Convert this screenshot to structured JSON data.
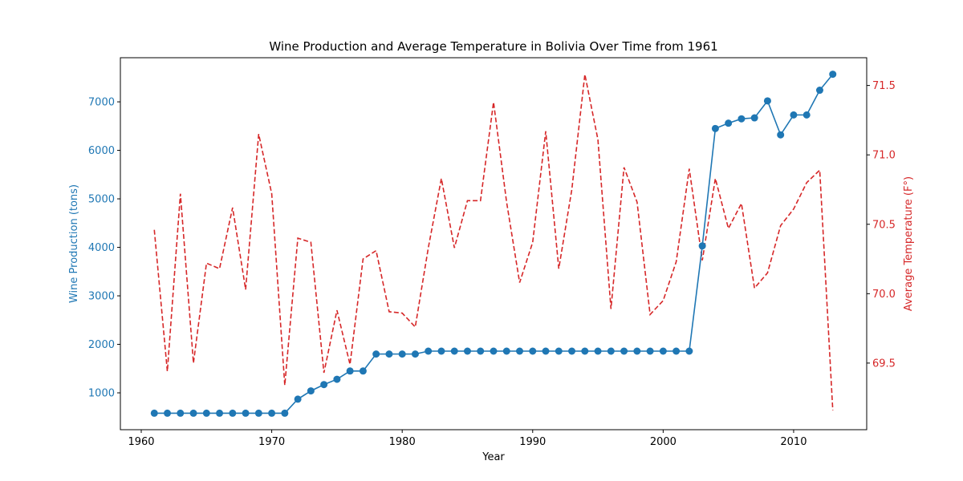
{
  "chart_data": {
    "type": "line",
    "title": "Wine Production and Average Temperature in Bolivia Over Time from 1961",
    "xlabel": "Year",
    "xlim": [
      1958.4,
      2015.6
    ],
    "xticks": [
      1960,
      1970,
      1980,
      1990,
      2000,
      2010
    ],
    "left_axis": {
      "label": "Wine Production (tons)",
      "color": "#1f77b4",
      "ylim": [
        240,
        7910
      ],
      "ticks": [
        1000,
        2000,
        3000,
        4000,
        5000,
        6000,
        7000
      ]
    },
    "right_axis": {
      "label": "Average Temperature (F°)",
      "color": "#d62728",
      "ylim": [
        69.02,
        71.7
      ],
      "ticks": [
        69.5,
        70.0,
        70.5,
        71.0,
        71.5
      ],
      "tick_labels": [
        "69.5",
        "70.0",
        "70.5",
        "71.0",
        "71.5"
      ]
    },
    "x": [
      1961,
      1962,
      1963,
      1964,
      1965,
      1966,
      1967,
      1968,
      1969,
      1970,
      1971,
      1972,
      1973,
      1974,
      1975,
      1976,
      1977,
      1978,
      1979,
      1980,
      1981,
      1982,
      1983,
      1984,
      1985,
      1986,
      1987,
      1988,
      1989,
      1990,
      1991,
      1992,
      1993,
      1994,
      1995,
      1996,
      1997,
      1998,
      1999,
      2000,
      2001,
      2002,
      2003,
      2004,
      2005,
      2006,
      2007,
      2008,
      2009,
      2010,
      2011,
      2012,
      2013
    ],
    "series": [
      {
        "axis": "left",
        "style": "solid-markers",
        "color": "#1f77b4",
        "values": [
          580,
          580,
          580,
          580,
          580,
          580,
          580,
          580,
          580,
          580,
          580,
          870,
          1040,
          1170,
          1280,
          1450,
          1450,
          1800,
          1800,
          1800,
          1800,
          1860,
          1860,
          1860,
          1860,
          1860,
          1860,
          1860,
          1860,
          1860,
          1860,
          1860,
          1860,
          1860,
          1860,
          1860,
          1860,
          1860,
          1860,
          1860,
          1860,
          1860,
          4030,
          6450,
          6560,
          6650,
          6670,
          7020,
          6320,
          6730,
          6730,
          7240,
          7570
        ]
      },
      {
        "axis": "right",
        "style": "dashed",
        "color": "#d62728",
        "values": [
          70.46,
          69.44,
          70.72,
          69.5,
          70.22,
          70.18,
          70.62,
          70.03,
          71.15,
          70.72,
          69.34,
          70.4,
          70.37,
          69.43,
          69.88,
          69.49,
          70.25,
          70.31,
          69.87,
          69.86,
          69.76,
          70.33,
          70.83,
          70.33,
          70.67,
          70.67,
          71.38,
          70.66,
          70.08,
          70.37,
          71.17,
          70.18,
          70.75,
          71.58,
          71.11,
          69.89,
          70.91,
          70.66,
          69.85,
          69.95,
          70.23,
          70.9,
          70.24,
          70.83,
          70.47,
          70.65,
          70.04,
          70.15,
          70.49,
          70.61,
          70.8,
          70.89,
          69.16
        ]
      }
    ]
  }
}
